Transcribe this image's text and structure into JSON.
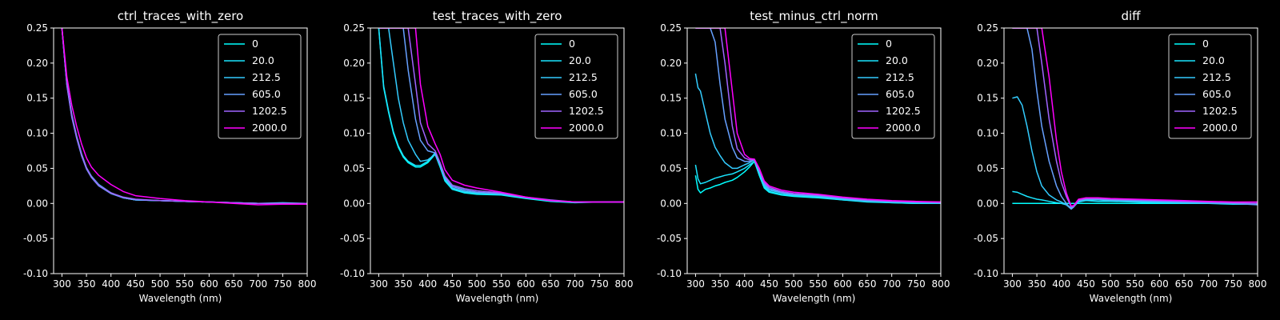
{
  "figure": {
    "background": "#000000",
    "foreground": "#ffffff"
  },
  "legend_labels": [
    "0",
    "20.0",
    "212.5",
    "605.0",
    "1202.5",
    "2000.0"
  ],
  "series_colors": [
    "#00ffff",
    "#1ae5ff",
    "#33ccff",
    "#66a0ff",
    "#a064ff",
    "#ff00ff"
  ],
  "chart_data": [
    {
      "type": "line",
      "title": "ctrl_traces_with_zero",
      "xlabel": "Wavelength (nm)",
      "ylabel": "",
      "xlim": [
        283,
        800
      ],
      "ylim": [
        -0.1,
        0.25
      ],
      "xticks": [
        300,
        350,
        400,
        450,
        500,
        550,
        600,
        650,
        700,
        750,
        800
      ],
      "yticks": [
        -0.1,
        -0.05,
        0.0,
        0.05,
        0.1,
        0.15,
        0.2,
        0.25
      ],
      "legend_position": "top-right",
      "grid": false,
      "x": [
        300,
        310,
        320,
        330,
        340,
        350,
        360,
        375,
        400,
        425,
        450,
        500,
        550,
        600,
        650,
        700,
        750,
        800
      ],
      "series": [
        {
          "name": "0",
          "values": [
            0.25,
            0.17,
            0.125,
            0.095,
            0.07,
            0.05,
            0.038,
            0.026,
            0.015,
            0.008,
            0.005,
            0.004,
            0.003,
            0.002,
            0.001,
            0.0,
            0.0,
            0.0
          ]
        },
        {
          "name": "20.0",
          "values": [
            0.25,
            0.17,
            0.125,
            0.095,
            0.07,
            0.05,
            0.038,
            0.026,
            0.015,
            0.008,
            0.005,
            0.004,
            0.003,
            0.002,
            0.001,
            0.0,
            0.0,
            0.0
          ]
        },
        {
          "name": "212.5",
          "values": [
            0.25,
            0.172,
            0.127,
            0.096,
            0.071,
            0.051,
            0.039,
            0.027,
            0.015,
            0.008,
            0.005,
            0.004,
            0.003,
            0.002,
            0.001,
            0.0,
            0.001,
            0.0
          ]
        },
        {
          "name": "605.0",
          "values": [
            0.25,
            0.168,
            0.123,
            0.093,
            0.068,
            0.049,
            0.037,
            0.025,
            0.014,
            0.008,
            0.005,
            0.004,
            0.003,
            0.002,
            0.001,
            0.0,
            0.0,
            0.0
          ]
        },
        {
          "name": "1202.5",
          "values": [
            0.25,
            0.17,
            0.125,
            0.095,
            0.07,
            0.051,
            0.038,
            0.026,
            0.015,
            0.009,
            0.006,
            0.004,
            0.003,
            0.002,
            0.001,
            0.0,
            0.0,
            0.0
          ]
        },
        {
          "name": "2000.0",
          "values": [
            0.25,
            0.18,
            0.14,
            0.11,
            0.085,
            0.065,
            0.052,
            0.04,
            0.027,
            0.017,
            0.011,
            0.007,
            0.004,
            0.002,
            0.0,
            -0.002,
            -0.001,
            -0.001
          ]
        }
      ]
    },
    {
      "type": "line",
      "title": "test_traces_with_zero",
      "xlabel": "Wavelength (nm)",
      "ylabel": "",
      "xlim": [
        283,
        800
      ],
      "ylim": [
        -0.1,
        0.25
      ],
      "xticks": [
        300,
        350,
        400,
        450,
        500,
        550,
        600,
        650,
        700,
        750,
        800
      ],
      "yticks": [
        -0.1,
        -0.05,
        0.0,
        0.05,
        0.1,
        0.15,
        0.2,
        0.25
      ],
      "legend_position": "top-right",
      "grid": false,
      "x": [
        300,
        310,
        320,
        330,
        340,
        350,
        360,
        375,
        385,
        400,
        415,
        425,
        435,
        450,
        475,
        500,
        550,
        600,
        650,
        700,
        750,
        800
      ],
      "series": [
        {
          "name": "0",
          "values": [
            0.25,
            0.165,
            0.13,
            0.1,
            0.08,
            0.066,
            0.058,
            0.052,
            0.052,
            0.058,
            0.07,
            0.052,
            0.032,
            0.02,
            0.015,
            0.013,
            0.012,
            0.007,
            0.003,
            0.001,
            0.002,
            0.002
          ]
        },
        {
          "name": "20.0",
          "values": [
            0.25,
            0.167,
            0.132,
            0.102,
            0.082,
            0.068,
            0.06,
            0.054,
            0.054,
            0.06,
            0.072,
            0.054,
            0.034,
            0.021,
            0.016,
            0.014,
            0.013,
            0.008,
            0.004,
            0.002,
            0.002,
            0.002
          ]
        },
        {
          "name": "212.5",
          "values": [
            0.25,
            0.25,
            0.25,
            0.2,
            0.15,
            0.115,
            0.09,
            0.07,
            0.06,
            0.062,
            0.07,
            0.054,
            0.035,
            0.022,
            0.017,
            0.015,
            0.013,
            0.008,
            0.004,
            0.002,
            0.002,
            0.002
          ]
        },
        {
          "name": "605.0",
          "values": [
            0.25,
            0.25,
            0.25,
            0.25,
            0.25,
            0.25,
            0.19,
            0.12,
            0.09,
            0.075,
            0.072,
            0.056,
            0.037,
            0.024,
            0.019,
            0.016,
            0.014,
            0.008,
            0.004,
            0.002,
            0.002,
            0.002
          ]
        },
        {
          "name": "1202.5",
          "values": [
            0.25,
            0.25,
            0.25,
            0.25,
            0.25,
            0.25,
            0.25,
            0.17,
            0.115,
            0.085,
            0.075,
            0.058,
            0.039,
            0.026,
            0.021,
            0.018,
            0.015,
            0.009,
            0.005,
            0.002,
            0.002,
            0.002
          ]
        },
        {
          "name": "2000.0",
          "values": [
            0.25,
            0.25,
            0.25,
            0.25,
            0.25,
            0.25,
            0.25,
            0.25,
            0.17,
            0.11,
            0.085,
            0.07,
            0.048,
            0.033,
            0.026,
            0.022,
            0.016,
            0.009,
            0.004,
            0.002,
            0.002,
            0.002
          ]
        }
      ]
    },
    {
      "type": "line",
      "title": "test_minus_ctrl_norm",
      "xlabel": "Wavelength (nm)",
      "ylabel": "",
      "xlim": [
        283,
        800
      ],
      "ylim": [
        -0.1,
        0.25
      ],
      "xticks": [
        300,
        350,
        400,
        450,
        500,
        550,
        600,
        650,
        700,
        750,
        800
      ],
      "yticks": [
        -0.1,
        -0.05,
        0.0,
        0.05,
        0.1,
        0.15,
        0.2,
        0.25
      ],
      "legend_position": "top-right",
      "grid": false,
      "x": [
        300,
        305,
        310,
        320,
        330,
        340,
        350,
        360,
        375,
        385,
        400,
        410,
        420,
        430,
        440,
        450,
        475,
        500,
        550,
        600,
        650,
        700,
        750,
        800
      ],
      "series": [
        {
          "name": "0",
          "values": [
            0.04,
            0.02,
            0.015,
            0.02,
            0.022,
            0.025,
            0.027,
            0.03,
            0.033,
            0.037,
            0.045,
            0.052,
            0.06,
            0.04,
            0.022,
            0.016,
            0.012,
            0.01,
            0.008,
            0.005,
            0.002,
            0.001,
            0.0,
            0.0
          ]
        },
        {
          "name": "20.0",
          "values": [
            0.055,
            0.035,
            0.028,
            0.03,
            0.033,
            0.036,
            0.038,
            0.04,
            0.042,
            0.045,
            0.05,
            0.055,
            0.06,
            0.042,
            0.024,
            0.017,
            0.013,
            0.011,
            0.009,
            0.005,
            0.003,
            0.001,
            0.0,
            0.0
          ]
        },
        {
          "name": "212.5",
          "values": [
            0.185,
            0.165,
            0.16,
            0.13,
            0.1,
            0.08,
            0.068,
            0.058,
            0.05,
            0.05,
            0.055,
            0.058,
            0.062,
            0.044,
            0.026,
            0.019,
            0.015,
            0.012,
            0.01,
            0.006,
            0.003,
            0.002,
            0.001,
            0.0
          ]
        },
        {
          "name": "605.0",
          "values": [
            0.25,
            0.25,
            0.25,
            0.25,
            0.25,
            0.23,
            0.17,
            0.12,
            0.08,
            0.065,
            0.06,
            0.06,
            0.062,
            0.046,
            0.028,
            0.021,
            0.016,
            0.013,
            0.011,
            0.007,
            0.004,
            0.003,
            0.002,
            0.001
          ]
        },
        {
          "name": "1202.5",
          "values": [
            0.25,
            0.25,
            0.25,
            0.25,
            0.25,
            0.25,
            0.25,
            0.2,
            0.11,
            0.078,
            0.065,
            0.062,
            0.063,
            0.048,
            0.03,
            0.023,
            0.017,
            0.014,
            0.012,
            0.008,
            0.005,
            0.003,
            0.002,
            0.002
          ]
        },
        {
          "name": "2000.0",
          "values": [
            0.25,
            0.25,
            0.25,
            0.25,
            0.25,
            0.25,
            0.25,
            0.25,
            0.16,
            0.1,
            0.07,
            0.064,
            0.063,
            0.05,
            0.032,
            0.025,
            0.019,
            0.016,
            0.013,
            0.009,
            0.006,
            0.004,
            0.003,
            0.002
          ]
        }
      ]
    },
    {
      "type": "line",
      "title": "diff",
      "xlabel": "Wavelength (nm)",
      "ylabel": "",
      "xlim": [
        283,
        800
      ],
      "ylim": [
        -0.1,
        0.25
      ],
      "xticks": [
        300,
        350,
        400,
        450,
        500,
        550,
        600,
        650,
        700,
        750,
        800
      ],
      "yticks": [
        -0.1,
        -0.05,
        0.0,
        0.05,
        0.1,
        0.15,
        0.2,
        0.25
      ],
      "legend_position": "top-right",
      "grid": false,
      "x": [
        300,
        310,
        320,
        330,
        340,
        350,
        360,
        375,
        390,
        400,
        410,
        420,
        425,
        435,
        450,
        475,
        500,
        550,
        600,
        650,
        700,
        750,
        800
      ],
      "series": [
        {
          "name": "0",
          "values": [
            0.0,
            0.0,
            0.0,
            0.0,
            0.0,
            0.0,
            0.0,
            0.0,
            0.0,
            0.0,
            0.0,
            0.0,
            0.0,
            0.0,
            0.0,
            0.0,
            0.0,
            0.0,
            0.0,
            0.0,
            0.0,
            0.0,
            0.0
          ]
        },
        {
          "name": "20.0",
          "values": [
            0.017,
            0.016,
            0.013,
            0.01,
            0.008,
            0.006,
            0.005,
            0.003,
            0.001,
            0.0,
            -0.002,
            -0.006,
            -0.004,
            0.002,
            0.004,
            0.003,
            0.003,
            0.002,
            0.001,
            0.0,
            0.0,
            -0.001,
            -0.001
          ]
        },
        {
          "name": "212.5",
          "values": [
            0.15,
            0.152,
            0.14,
            0.11,
            0.075,
            0.045,
            0.025,
            0.012,
            0.005,
            0.002,
            -0.002,
            -0.008,
            -0.005,
            0.003,
            0.005,
            0.005,
            0.004,
            0.003,
            0.002,
            0.001,
            0.0,
            0.0,
            -0.001
          ]
        },
        {
          "name": "605.0",
          "values": [
            0.25,
            0.25,
            0.25,
            0.25,
            0.22,
            0.16,
            0.11,
            0.06,
            0.025,
            0.01,
            0.0,
            -0.008,
            -0.005,
            0.004,
            0.006,
            0.006,
            0.005,
            0.004,
            0.003,
            0.002,
            0.001,
            0.0,
            -0.002
          ]
        },
        {
          "name": "1202.5",
          "values": [
            0.25,
            0.25,
            0.25,
            0.25,
            0.25,
            0.25,
            0.2,
            0.12,
            0.06,
            0.03,
            0.01,
            -0.005,
            -0.004,
            0.005,
            0.007,
            0.007,
            0.006,
            0.005,
            0.004,
            0.003,
            0.002,
            0.001,
            0.0
          ]
        },
        {
          "name": "2000.0",
          "values": [
            0.25,
            0.25,
            0.25,
            0.25,
            0.25,
            0.25,
            0.25,
            0.18,
            0.09,
            0.045,
            0.015,
            -0.004,
            -0.003,
            0.006,
            0.008,
            0.008,
            0.007,
            0.006,
            0.005,
            0.004,
            0.003,
            0.002,
            0.002
          ]
        }
      ]
    }
  ]
}
